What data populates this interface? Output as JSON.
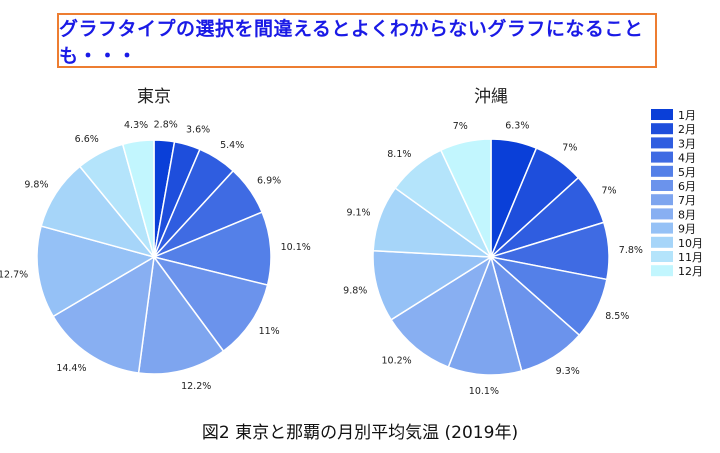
{
  "banner": {
    "text": "グラフタイプの選択を間違えるとよくわからないグラフになることも・・・"
  },
  "caption": "図2 東京と那覇の月別平均気温 (2019年)",
  "colors": [
    "#0A3FD8",
    "#1E4EDC",
    "#2F5DE0",
    "#3F6BE3",
    "#5480E8",
    "#6B93EC",
    "#7EA5EF",
    "#88AFF2",
    "#95C1F6",
    "#A6D5F9",
    "#B4E4FB",
    "#C2F6FE"
  ],
  "chart_data": [
    {
      "type": "pie",
      "title": "東京",
      "categories": [
        "1月",
        "2月",
        "3月",
        "4月",
        "5月",
        "6月",
        "7月",
        "8月",
        "9月",
        "10月",
        "11月",
        "12月"
      ],
      "values": [
        2.8,
        3.6,
        5.4,
        6.9,
        10.1,
        11,
        12.2,
        14.4,
        12.7,
        9.8,
        6.6,
        4.3
      ],
      "labels": [
        "2.8%",
        "3.6%",
        "5.4%",
        "6.9%",
        "10.1%",
        "11%",
        "12.2%",
        "14.4%",
        "12.7%",
        "9.8%",
        "6.6%",
        "4.3%"
      ],
      "legend": "right"
    },
    {
      "type": "pie",
      "title": "沖縄",
      "categories": [
        "1月",
        "2月",
        "3月",
        "4月",
        "5月",
        "6月",
        "7月",
        "8月",
        "9月",
        "10月",
        "11月",
        "12月"
      ],
      "values": [
        6.3,
        7,
        7,
        7.8,
        8.5,
        9.3,
        10.1,
        10.2,
        9.8,
        9.1,
        8.1,
        7
      ],
      "labels": [
        "6.3%",
        "7%",
        "7%",
        "7.8%",
        "8.5%",
        "9.3%",
        "10.1%",
        "10.2%",
        "9.8%",
        "9.1%",
        "8.1%",
        "7%"
      ],
      "legend": "right"
    }
  ]
}
